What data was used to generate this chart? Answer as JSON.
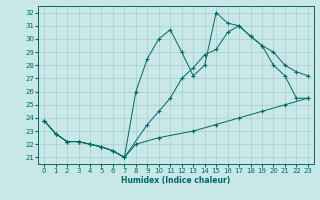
{
  "xlabel": "Humidex (Indice chaleur)",
  "bg_color": "#c8e8e8",
  "line_color": "#006666",
  "grid_color": "#aacccc",
  "xlim": [
    -0.5,
    23.5
  ],
  "ylim": [
    20.5,
    32.5
  ],
  "xticks": [
    0,
    1,
    2,
    3,
    4,
    5,
    6,
    7,
    8,
    9,
    10,
    11,
    12,
    13,
    14,
    15,
    16,
    17,
    18,
    19,
    20,
    21,
    22,
    23
  ],
  "yticks": [
    21,
    22,
    23,
    24,
    25,
    26,
    27,
    28,
    29,
    30,
    31,
    32
  ],
  "line1": {
    "x": [
      0,
      1,
      2,
      3,
      4,
      5,
      6,
      7,
      8,
      10,
      13,
      15,
      17,
      19,
      21,
      23
    ],
    "y": [
      23.8,
      22.8,
      22.2,
      22.2,
      22.0,
      21.8,
      21.5,
      21.0,
      22.0,
      22.5,
      23.0,
      23.5,
      24.0,
      24.5,
      25.0,
      25.5
    ]
  },
  "line2": {
    "x": [
      0,
      1,
      2,
      3,
      4,
      5,
      6,
      7,
      8,
      9,
      10,
      11,
      12,
      13,
      14,
      15,
      16,
      17,
      18,
      19,
      20,
      21,
      22,
      23
    ],
    "y": [
      23.8,
      22.8,
      22.2,
      22.2,
      22.0,
      21.8,
      21.5,
      21.0,
      26.0,
      28.5,
      30.0,
      30.7,
      29.0,
      27.2,
      28.0,
      32.0,
      31.2,
      31.0,
      30.2,
      29.5,
      28.0,
      27.2,
      25.5,
      25.5
    ]
  },
  "line3": {
    "x": [
      0,
      1,
      2,
      3,
      4,
      5,
      6,
      7,
      9,
      10,
      11,
      12,
      13,
      14,
      15,
      16,
      17,
      18,
      19,
      20,
      21,
      22,
      23
    ],
    "y": [
      23.8,
      22.8,
      22.2,
      22.2,
      22.0,
      21.8,
      21.5,
      21.0,
      23.5,
      24.5,
      25.5,
      27.0,
      27.8,
      28.8,
      29.2,
      30.5,
      31.0,
      30.2,
      29.5,
      29.0,
      28.0,
      27.5,
      27.2
    ]
  }
}
